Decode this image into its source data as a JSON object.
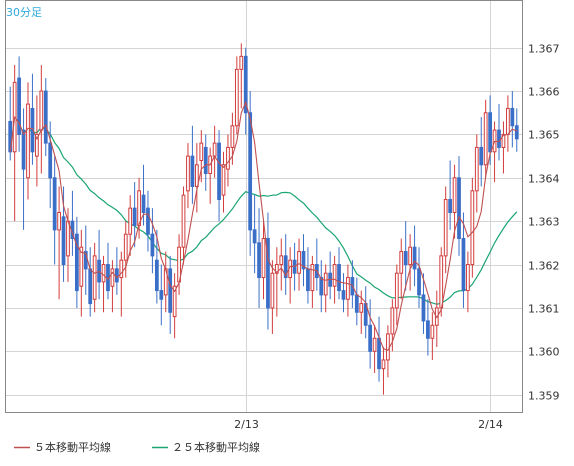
{
  "chart_data": {
    "type": "candlestick",
    "timeframe_label": "30分足",
    "x_labels": [
      {
        "index": 53,
        "label": "2/13"
      },
      {
        "index": 108,
        "label": "2/14"
      }
    ],
    "y_ticks": [
      "1.359",
      "1.360",
      "1.361",
      "1.362",
      "1.363",
      "1.364",
      "1.365",
      "1.366",
      "1.367"
    ],
    "ylim": [
      1.3586,
      1.3681
    ],
    "grid": true,
    "legend": {
      "placement": "bottom",
      "items": [
        {
          "label": "５本移動平均線",
          "color": "#c05050"
        },
        {
          "label": "２５本移動平均線",
          "color": "#1aa571"
        }
      ]
    },
    "colors": {
      "up": "#d23c3c",
      "down": "#3a6fc8",
      "grid": "#d4d4d4",
      "axis": "#888888",
      "label": "#333333",
      "title": "#2ea9dc"
    },
    "candles": [
      [
        1.3653,
        1.3661,
        1.3644,
        1.3646
      ],
      [
        1.3646,
        1.3666,
        1.363,
        1.3662
      ],
      [
        1.3663,
        1.3668,
        1.3646,
        1.365
      ],
      [
        1.3651,
        1.3656,
        1.3628,
        1.3642
      ],
      [
        1.364,
        1.3662,
        1.3635,
        1.3657
      ],
      [
        1.3656,
        1.3664,
        1.3643,
        1.3646
      ],
      [
        1.3645,
        1.3659,
        1.3638,
        1.365
      ],
      [
        1.3651,
        1.3666,
        1.3641,
        1.366
      ],
      [
        1.366,
        1.3663,
        1.3645,
        1.3648
      ],
      [
        1.3648,
        1.3653,
        1.3633,
        1.364
      ],
      [
        1.364,
        1.3645,
        1.362,
        1.3628
      ],
      [
        1.3628,
        1.3638,
        1.3612,
        1.3632
      ],
      [
        1.3631,
        1.3638,
        1.3616,
        1.362
      ],
      [
        1.3622,
        1.3633,
        1.3616,
        1.363
      ],
      [
        1.363,
        1.3637,
        1.3622,
        1.3626
      ],
      [
        1.3627,
        1.3631,
        1.361,
        1.3614
      ],
      [
        1.3615,
        1.3628,
        1.3608,
        1.3624
      ],
      [
        1.3623,
        1.3629,
        1.3613,
        1.3619
      ],
      [
        1.3619,
        1.3624,
        1.3608,
        1.3611
      ],
      [
        1.3612,
        1.3625,
        1.3609,
        1.3622
      ],
      [
        1.3621,
        1.3628,
        1.3612,
        1.3616
      ],
      [
        1.3616,
        1.3622,
        1.3609,
        1.362
      ],
      [
        1.362,
        1.3625,
        1.3612,
        1.3614
      ],
      [
        1.3615,
        1.3621,
        1.3609,
        1.3619
      ],
      [
        1.3619,
        1.3624,
        1.3613,
        1.3616
      ],
      [
        1.3617,
        1.3623,
        1.3608,
        1.3621
      ],
      [
        1.3621,
        1.363,
        1.3617,
        1.3627
      ],
      [
        1.3627,
        1.3636,
        1.3622,
        1.3633
      ],
      [
        1.3633,
        1.3639,
        1.3624,
        1.3629
      ],
      [
        1.3629,
        1.364,
        1.3626,
        1.3637
      ],
      [
        1.3636,
        1.3643,
        1.3629,
        1.3632
      ],
      [
        1.3633,
        1.3637,
        1.3623,
        1.3627
      ],
      [
        1.3627,
        1.3633,
        1.3618,
        1.3622
      ],
      [
        1.3621,
        1.3628,
        1.3611,
        1.3614
      ],
      [
        1.3614,
        1.362,
        1.3606,
        1.3612
      ],
      [
        1.3613,
        1.3623,
        1.3609,
        1.3619
      ],
      [
        1.3619,
        1.3622,
        1.3604,
        1.3609
      ],
      [
        1.3608,
        1.3618,
        1.3603,
        1.3615
      ],
      [
        1.3616,
        1.3627,
        1.3613,
        1.3624
      ],
      [
        1.3624,
        1.3638,
        1.362,
        1.3636
      ],
      [
        1.3637,
        1.3648,
        1.3633,
        1.3645
      ],
      [
        1.3645,
        1.3652,
        1.3634,
        1.3638
      ],
      [
        1.3638,
        1.3648,
        1.3632,
        1.3643
      ],
      [
        1.3644,
        1.3651,
        1.3639,
        1.3648
      ],
      [
        1.3647,
        1.365,
        1.3637,
        1.3641
      ],
      [
        1.3641,
        1.3647,
        1.3634,
        1.3645
      ],
      [
        1.3645,
        1.3652,
        1.364,
        1.3648
      ],
      [
        1.3648,
        1.3651,
        1.363,
        1.3635
      ],
      [
        1.3636,
        1.3646,
        1.3632,
        1.3643
      ],
      [
        1.3642,
        1.365,
        1.3638,
        1.3647
      ],
      [
        1.3647,
        1.3655,
        1.3643,
        1.3652
      ],
      [
        1.3652,
        1.3668,
        1.365,
        1.3665
      ],
      [
        1.3665,
        1.3671,
        1.3656,
        1.3668
      ],
      [
        1.3668,
        1.367,
        1.365,
        1.3655
      ],
      [
        1.3655,
        1.366,
        1.3622,
        1.3628
      ],
      [
        1.3628,
        1.3636,
        1.3618,
        1.3625
      ],
      [
        1.3625,
        1.3633,
        1.361,
        1.3617
      ],
      [
        1.3617,
        1.363,
        1.3612,
        1.3626
      ],
      [
        1.3626,
        1.3632,
        1.3605,
        1.361
      ],
      [
        1.361,
        1.3621,
        1.3604,
        1.3618
      ],
      [
        1.3618,
        1.3624,
        1.3608,
        1.362
      ],
      [
        1.362,
        1.3626,
        1.3614,
        1.3622
      ],
      [
        1.3622,
        1.3627,
        1.3613,
        1.3617
      ],
      [
        1.3617,
        1.3624,
        1.3611,
        1.3621
      ],
      [
        1.3621,
        1.3625,
        1.3614,
        1.3618
      ],
      [
        1.3618,
        1.3626,
        1.3614,
        1.3623
      ],
      [
        1.3623,
        1.3627,
        1.3615,
        1.3619
      ],
      [
        1.3619,
        1.3624,
        1.3611,
        1.3614
      ],
      [
        1.3614,
        1.3622,
        1.361,
        1.362
      ],
      [
        1.362,
        1.3626,
        1.3614,
        1.3617
      ],
      [
        1.3617,
        1.3621,
        1.3609,
        1.3613
      ],
      [
        1.3613,
        1.362,
        1.3609,
        1.3618
      ],
      [
        1.3618,
        1.3623,
        1.3612,
        1.3615
      ],
      [
        1.3615,
        1.3622,
        1.3611,
        1.362
      ],
      [
        1.362,
        1.3624,
        1.3612,
        1.3614
      ],
      [
        1.3614,
        1.3618,
        1.3609,
        1.3612
      ],
      [
        1.3612,
        1.362,
        1.3608,
        1.3617
      ],
      [
        1.3617,
        1.3621,
        1.361,
        1.3613
      ],
      [
        1.3613,
        1.3617,
        1.3606,
        1.3609
      ],
      [
        1.3609,
        1.3614,
        1.3604,
        1.3611
      ],
      [
        1.3611,
        1.3615,
        1.3603,
        1.3606
      ],
      [
        1.3606,
        1.3612,
        1.3596,
        1.36
      ],
      [
        1.36,
        1.3606,
        1.3595,
        1.3603
      ],
      [
        1.3603,
        1.3608,
        1.3593,
        1.3596
      ],
      [
        1.3596,
        1.3601,
        1.359,
        1.3598
      ],
      [
        1.3598,
        1.3606,
        1.3594,
        1.3604
      ],
      [
        1.3604,
        1.3612,
        1.36,
        1.361
      ],
      [
        1.361,
        1.362,
        1.3606,
        1.3618
      ],
      [
        1.3618,
        1.3626,
        1.3612,
        1.3623
      ],
      [
        1.3623,
        1.363,
        1.3614,
        1.362
      ],
      [
        1.362,
        1.3627,
        1.3614,
        1.3624
      ],
      [
        1.3624,
        1.3629,
        1.3615,
        1.3619
      ],
      [
        1.3619,
        1.3624,
        1.361,
        1.3613
      ],
      [
        1.3613,
        1.3618,
        1.3604,
        1.3607
      ],
      [
        1.3607,
        1.3612,
        1.3599,
        1.3603
      ],
      [
        1.3603,
        1.3609,
        1.3598,
        1.3606
      ],
      [
        1.3606,
        1.3614,
        1.3601,
        1.361
      ],
      [
        1.361,
        1.3624,
        1.3608,
        1.3622
      ],
      [
        1.3622,
        1.3638,
        1.3618,
        1.3635
      ],
      [
        1.3635,
        1.3644,
        1.3628,
        1.3632
      ],
      [
        1.3632,
        1.3643,
        1.3626,
        1.364
      ],
      [
        1.364,
        1.3645,
        1.3622,
        1.3626
      ],
      [
        1.3626,
        1.3632,
        1.361,
        1.3614
      ],
      [
        1.3614,
        1.3623,
        1.3609,
        1.362
      ],
      [
        1.362,
        1.364,
        1.3617,
        1.3637
      ],
      [
        1.3637,
        1.365,
        1.3632,
        1.3647
      ],
      [
        1.3647,
        1.3654,
        1.3638,
        1.3643
      ],
      [
        1.3643,
        1.3658,
        1.364,
        1.3655
      ],
      [
        1.3655,
        1.3659,
        1.3643,
        1.3646
      ],
      [
        1.3646,
        1.3653,
        1.3639,
        1.3651
      ],
      [
        1.3651,
        1.3657,
        1.3644,
        1.3647
      ],
      [
        1.3647,
        1.3653,
        1.3641,
        1.365
      ],
      [
        1.365,
        1.3659,
        1.3646,
        1.3656
      ],
      [
        1.3656,
        1.366,
        1.3647,
        1.3652
      ],
      [
        1.3652,
        1.3656,
        1.3646,
        1.3649
      ]
    ]
  }
}
